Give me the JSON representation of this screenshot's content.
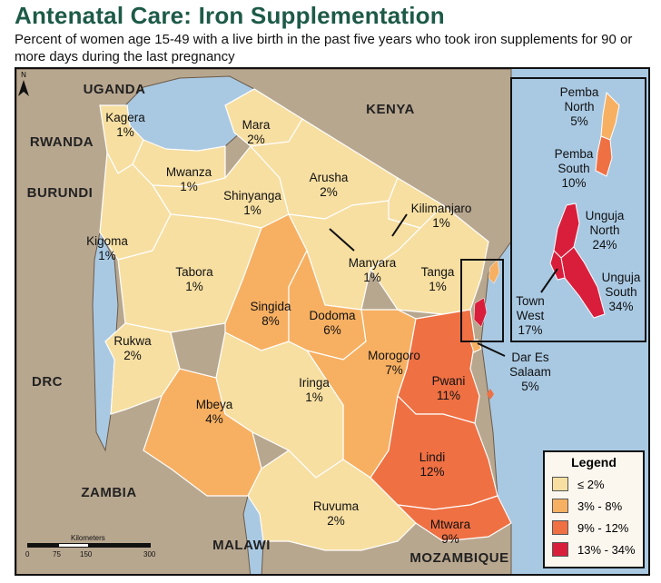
{
  "title": "Antenatal Care: Iron Supplementation",
  "subtitle": "Percent of women age 15-49 with a live birth in the past five years who took iron supplements for 90 or more days during the last pregnancy",
  "north_label": "N",
  "countries": {
    "uganda": "UGANDA",
    "kenya": "KENYA",
    "rwanda": "RWANDA",
    "burundi": "BURUNDI",
    "drc": "DRC",
    "zambia": "ZAMBIA",
    "malawi": "MALAWI",
    "mozambique": "MOZAMBIQUE"
  },
  "regions": {
    "kagera": {
      "name": "Kagera",
      "value": "1%"
    },
    "mara": {
      "name": "Mara",
      "value": "2%"
    },
    "mwanza": {
      "name": "Mwanza",
      "value": "1%"
    },
    "arusha": {
      "name": "Arusha",
      "value": "2%"
    },
    "shinyanga": {
      "name": "Shinyanga",
      "value": "1%"
    },
    "kilimanjaro": {
      "name": "Kilimanjaro",
      "value": "1%"
    },
    "kigoma": {
      "name": "Kigoma",
      "value": "1%"
    },
    "manyara": {
      "name": "Manyara",
      "value": "1%"
    },
    "tabora": {
      "name": "Tabora",
      "value": "1%"
    },
    "tanga": {
      "name": "Tanga",
      "value": "1%"
    },
    "singida": {
      "name": "Singida",
      "value": "8%"
    },
    "dodoma": {
      "name": "Dodoma",
      "value": "6%"
    },
    "rukwa": {
      "name": "Rukwa",
      "value": "2%"
    },
    "morogoro": {
      "name": "Morogoro",
      "value": "7%"
    },
    "dar": {
      "name": "Dar Es Salaam",
      "line1": "Dar Es",
      "line2": "Salaam",
      "value": "5%"
    },
    "iringa": {
      "name": "Iringa",
      "value": "1%"
    },
    "pwani": {
      "name": "Pwani",
      "value": "11%"
    },
    "mbeya": {
      "name": "Mbeya",
      "value": "4%"
    },
    "lindi": {
      "name": "Lindi",
      "value": "12%"
    },
    "ruvuma": {
      "name": "Ruvuma",
      "value": "2%"
    },
    "mtwara": {
      "name": "Mtwara",
      "value": "9%"
    },
    "pemba_north": {
      "name": "Pemba North",
      "line1": "Pemba",
      "line2": "North",
      "value": "5%"
    },
    "pemba_south": {
      "name": "Pemba South",
      "line1": "Pemba",
      "line2": "South",
      "value": "10%"
    },
    "unguja_north": {
      "name": "Unguja North",
      "line1": "Unguja",
      "line2": "North",
      "value": "24%"
    },
    "unguja_south": {
      "name": "Unguja South",
      "line1": "Unguja",
      "line2": "South",
      "value": "34%"
    },
    "town_west": {
      "name": "Town West",
      "line1": "Town",
      "line2": "West",
      "value": "17%"
    }
  },
  "legend": {
    "title": "Legend",
    "classes": [
      {
        "label": "≤ 2%",
        "color": "#f7dfa2"
      },
      {
        "label": "3% - 8%",
        "color": "#f7b062"
      },
      {
        "label": "9% - 12%",
        "color": "#ef7043"
      },
      {
        "label": "13% - 34%",
        "color": "#d91e3c"
      }
    ]
  },
  "scale": {
    "title": "Kilometers",
    "ticks": [
      "0",
      "75",
      "150",
      "300"
    ]
  },
  "colors": {
    "water": "#a9c9e3",
    "neighbor": "#b8a78f",
    "class1": "#f7dfa2",
    "class2": "#f7b062",
    "class3": "#ef7043",
    "class4": "#d91e3c",
    "title": "#1d5a47"
  }
}
